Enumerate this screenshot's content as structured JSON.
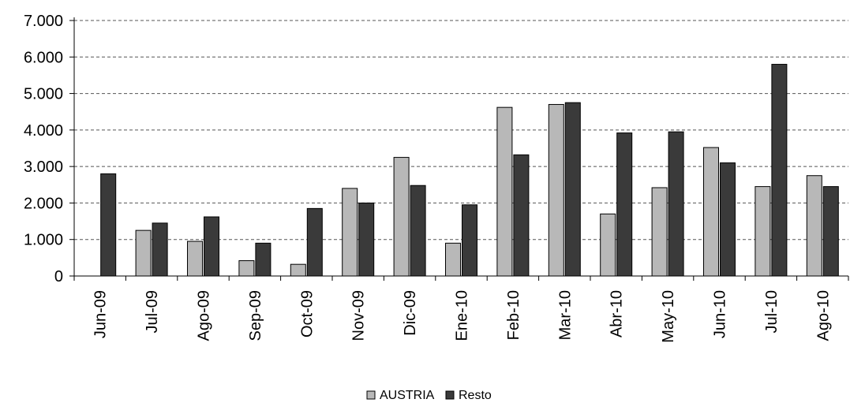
{
  "chart_data": {
    "type": "bar",
    "categories": [
      "Jun-09",
      "Jul-09",
      "Ago-09",
      "Sep-09",
      "Oct-09",
      "Nov-09",
      "Dic-09",
      "Ene-10",
      "Feb-10",
      "Mar-10",
      "Abr-10",
      "May-10",
      "Jun-10",
      "Jul-10",
      "Ago-10"
    ],
    "series": [
      {
        "name": "AUSTRIA",
        "values": [
          0,
          1250,
          950,
          420,
          320,
          2400,
          3250,
          900,
          4620,
          4700,
          1700,
          2420,
          3520,
          2450,
          2750
        ],
        "color": "#b8b8b8"
      },
      {
        "name": "Resto",
        "values": [
          2800,
          1450,
          1620,
          900,
          1850,
          2000,
          2480,
          1950,
          3320,
          4750,
          3920,
          3950,
          3100,
          5800,
          2450
        ],
        "color": "#3a3a3a"
      }
    ],
    "ylim": [
      0,
      7000
    ],
    "yticks": [
      0,
      1000,
      2000,
      3000,
      4000,
      5000,
      6000,
      7000
    ],
    "ytick_labels": [
      "0",
      "1.000",
      "2.000",
      "3.000",
      "4.000",
      "5.000",
      "6.000",
      "7.000"
    ],
    "grid": true,
    "legend_position": "bottom-center"
  }
}
